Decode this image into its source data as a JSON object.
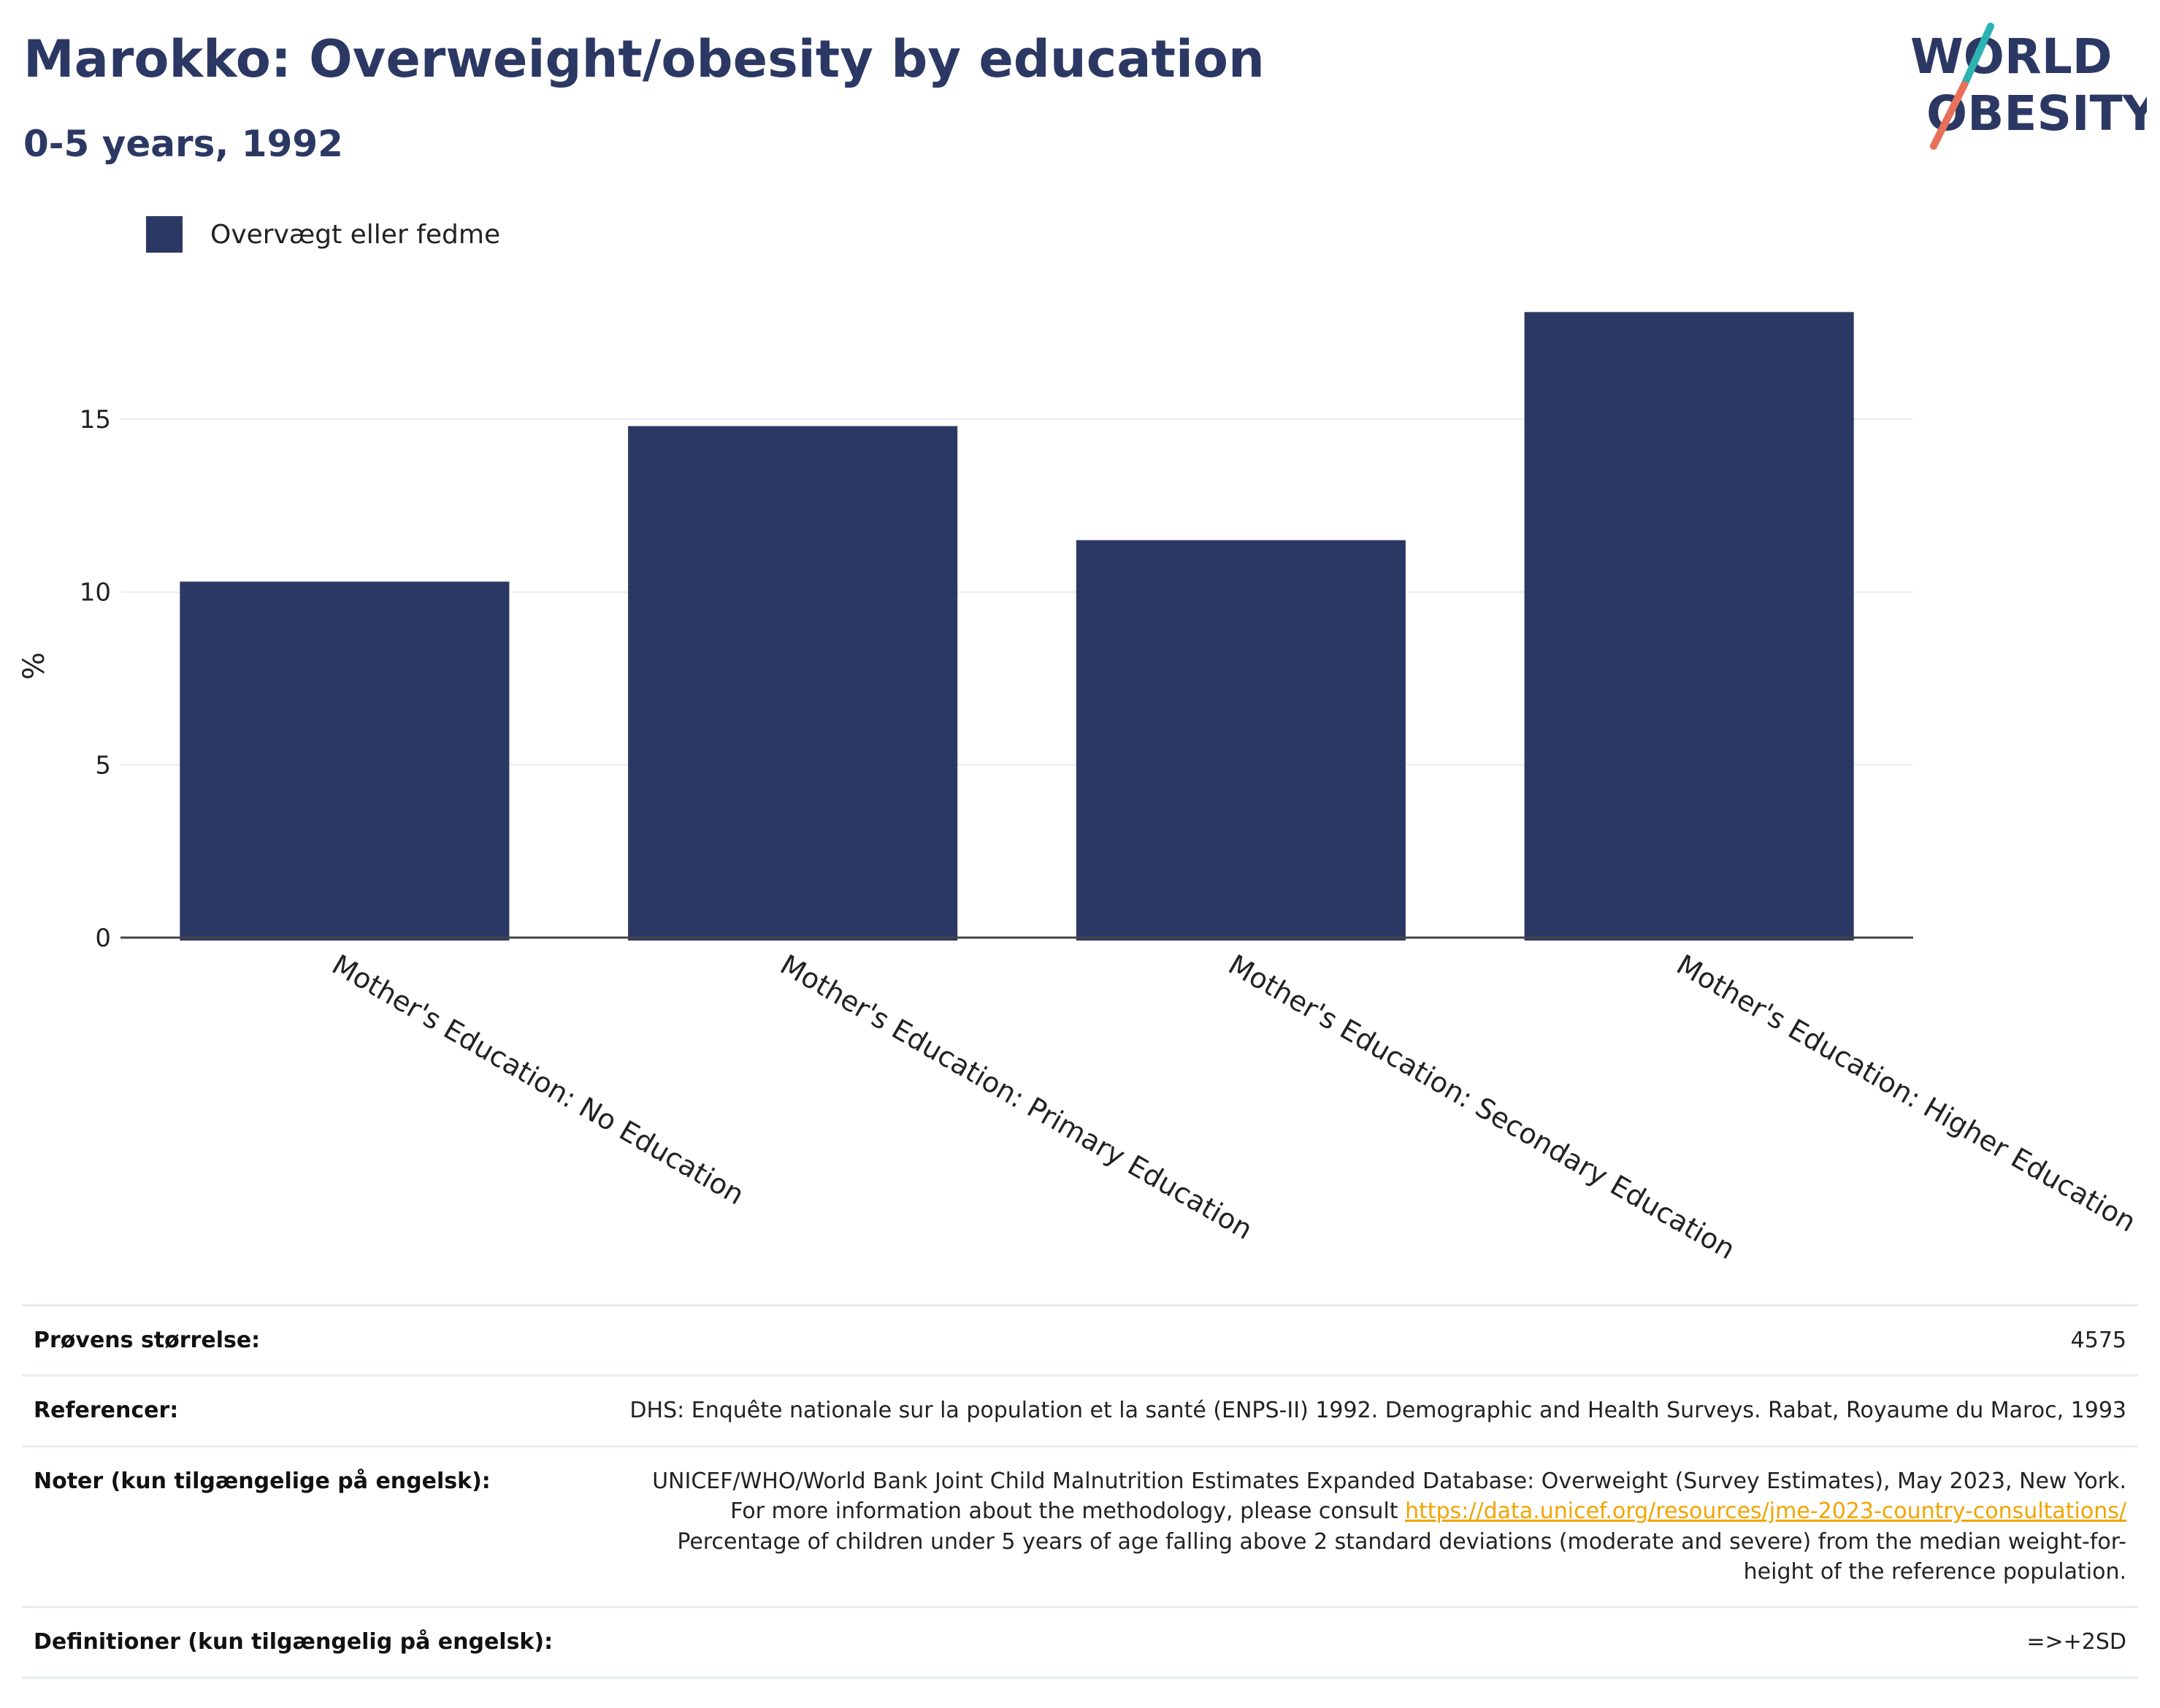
{
  "header": {
    "title": "Marokko: Overweight/obesity by education",
    "subtitle": "0-5 years, 1992"
  },
  "logo": {
    "line1": "WORLD",
    "line2": "OBESITY"
  },
  "legend": {
    "label": "Overvægt eller fedme",
    "color": "#2c3864"
  },
  "chart_data": {
    "type": "bar",
    "title": "Marokko: Overweight/obesity by education",
    "subtitle": "0-5 years, 1992",
    "categories": [
      "Mother's Education: No Education",
      "Mother's Education: Primary Education",
      "Mother's Education: Secondary Education",
      "Mother's Education: Higher Education"
    ],
    "series": [
      {
        "name": "Overvægt eller fedme",
        "values": [
          10.3,
          14.8,
          11.5,
          18.1
        ],
        "color": "#2c3864"
      }
    ],
    "xlabel": "",
    "ylabel": "%",
    "ylim": [
      0,
      19.1
    ],
    "yticks": [
      0,
      5,
      10,
      15
    ],
    "grid": true,
    "legend_position": "top-left"
  },
  "info": {
    "sample_label": "Prøvens størrelse:",
    "sample_value": "4575",
    "references_label": "Referencer:",
    "references_value": "DHS: Enquête nationale sur la population et la santé (ENPS-II) 1992. Demographic and Health Surveys. Rabat, Royaume du Maroc, 1993",
    "notes_label": "Noter (kun tilgængelige på engelsk):",
    "notes_text_1": "UNICEF/WHO/World Bank Joint Child Malnutrition Estimates Expanded Database: Overweight (Survey Estimates), May 2023, New York. For more information about the methodology, please consult",
    "notes_link": "https://data.unicef.org/resources/jme-2023-country-consultations/",
    "notes_text_2": "Percentage of children under 5 years of age falling above 2 standard deviations (moderate and severe) from the median weight-for-height of the reference population.",
    "definitions_label": "Definitioner (kun tilgængelig på engelsk):",
    "definitions_value": "=>+2SD"
  }
}
